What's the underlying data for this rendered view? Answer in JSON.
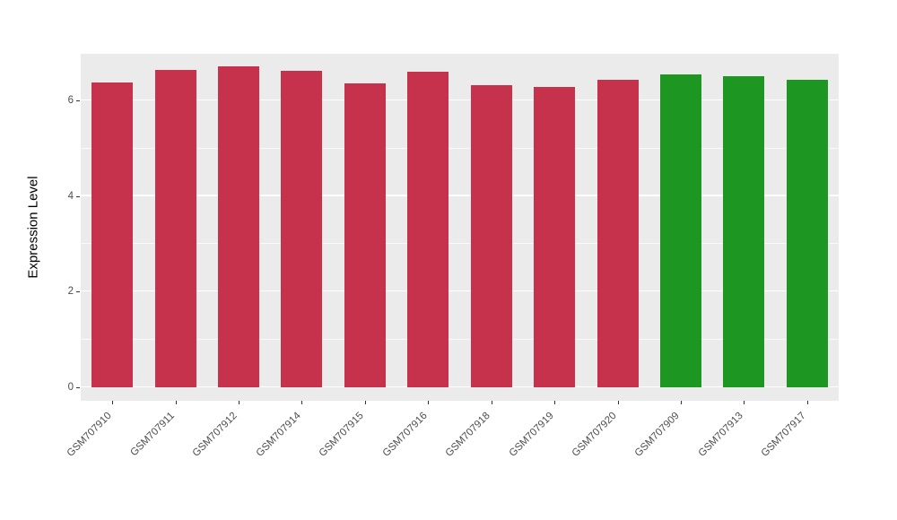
{
  "chart_data": {
    "type": "bar",
    "title": "",
    "xlabel": "",
    "ylabel": "Expression Level",
    "categories": [
      "GSM707910",
      "GSM707911",
      "GSM707912",
      "GSM707914",
      "GSM707915",
      "GSM707916",
      "GSM707918",
      "GSM707919",
      "GSM707920",
      "GSM707909",
      "GSM707913",
      "GSM707917"
    ],
    "values": [
      6.38,
      6.64,
      6.72,
      6.62,
      6.36,
      6.6,
      6.33,
      6.28,
      6.44,
      6.55,
      6.51,
      6.43
    ],
    "bar_colors": [
      "#C6324C",
      "#C6324C",
      "#C6324C",
      "#C6324C",
      "#C6324C",
      "#C6324C",
      "#C6324C",
      "#C6324C",
      "#C6324C",
      "#1E9622",
      "#1E9622",
      "#1E9622"
    ],
    "yticks": [
      0,
      2,
      4,
      6
    ],
    "yticks_minor": [
      1,
      3,
      5
    ],
    "ytick_labels": [
      "0",
      "2",
      "4",
      "6"
    ],
    "ylim": [
      0,
      6.97
    ],
    "grid": true,
    "legend": "none",
    "panel_bg": "#EBEBEB",
    "grid_color": "#FFFFFF"
  }
}
